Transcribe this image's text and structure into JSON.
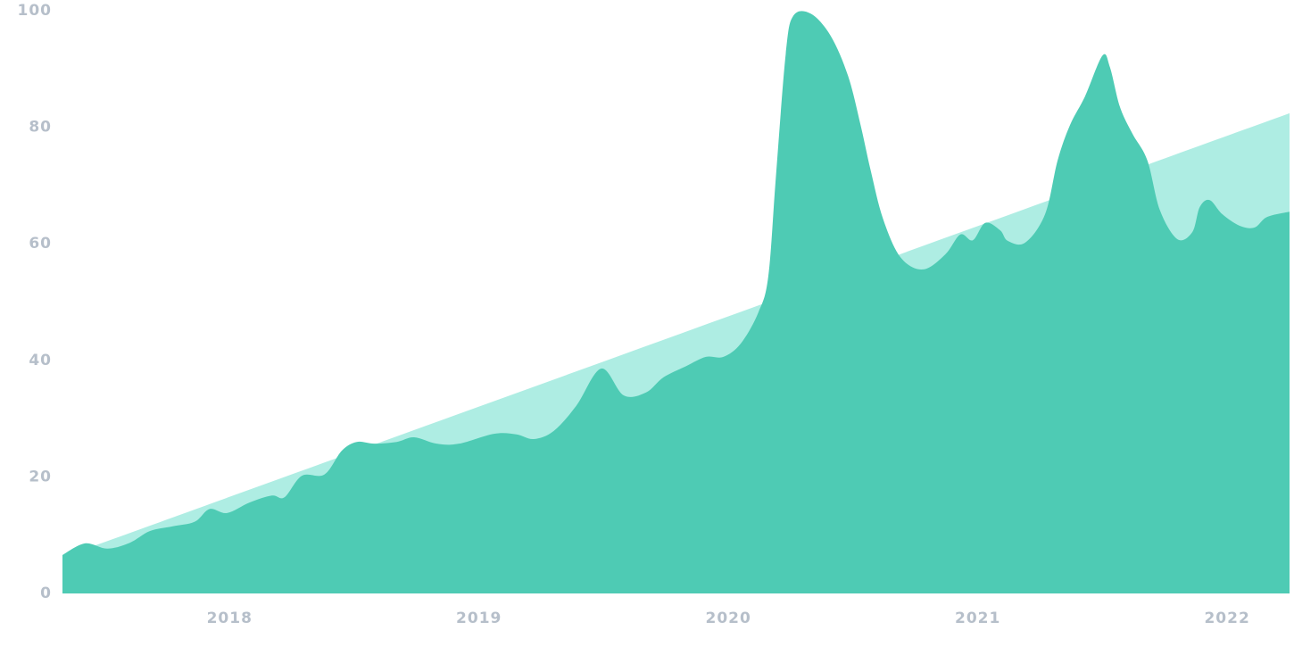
{
  "chart_data": {
    "type": "area",
    "xlim": [
      2017.33,
      2022.25
    ],
    "xticks": [
      2018,
      2019,
      2020,
      2021,
      2022
    ],
    "ylim": [
      0,
      100
    ],
    "yticks": [
      0,
      20,
      40,
      60,
      80,
      100
    ],
    "grid": false,
    "series": [
      {
        "color": "#aeede3",
        "x": [
          2017.33,
          2022.25
        ],
        "values": [
          6.2,
          82.4
        ]
      },
      {
        "color": "#4ecbb4",
        "x": [
          2017.33,
          2017.42,
          2017.51,
          2017.6,
          2017.68,
          2017.77,
          2017.86,
          2017.92,
          2017.99,
          2018.08,
          2018.17,
          2018.22,
          2018.29,
          2018.38,
          2018.45,
          2018.51,
          2018.58,
          2018.67,
          2018.74,
          2018.83,
          2018.92,
          2019.06,
          2019.15,
          2019.22,
          2019.3,
          2019.39,
          2019.49,
          2019.58,
          2019.67,
          2019.74,
          2019.83,
          2019.91,
          2019.98,
          2020.05,
          2020.12,
          2020.16,
          2020.19,
          2020.23,
          2020.26,
          2020.33,
          2020.41,
          2020.48,
          2020.53,
          2020.57,
          2020.62,
          2020.69,
          2020.78,
          2020.87,
          2020.93,
          2020.98,
          2021.03,
          2021.09,
          2021.12,
          2021.19,
          2021.27,
          2021.32,
          2021.37,
          2021.43,
          2021.5,
          2021.53,
          2021.57,
          2021.62,
          2021.68,
          2021.73,
          2021.8,
          2021.86,
          2021.89,
          2021.93,
          2021.98,
          2022.05,
          2022.11,
          2022.16,
          2022.25
        ],
        "values": [
          6.6,
          8.6,
          7.7,
          8.7,
          10.7,
          11.5,
          12.3,
          14.5,
          13.8,
          15.6,
          16.8,
          16.5,
          20.2,
          20.4,
          24.5,
          26.0,
          25.7,
          26.0,
          26.8,
          25.7,
          25.7,
          27.4,
          27.3,
          26.5,
          27.9,
          32.2,
          38.6,
          34.0,
          34.5,
          37.1,
          39.0,
          40.6,
          40.6,
          42.9,
          48.2,
          54.4,
          71.2,
          92.6,
          99.1,
          99.5,
          95.7,
          88.8,
          80.4,
          72.7,
          64.3,
          57.7,
          55.6,
          58.2,
          61.6,
          60.6,
          63.6,
          62.3,
          60.5,
          60.2,
          65.1,
          74.3,
          80.4,
          85.3,
          92.3,
          90.3,
          83.5,
          78.9,
          74.3,
          65.8,
          60.8,
          62.0,
          66.3,
          67.5,
          65.1,
          63.1,
          62.8,
          64.6,
          65.5
        ]
      }
    ]
  }
}
